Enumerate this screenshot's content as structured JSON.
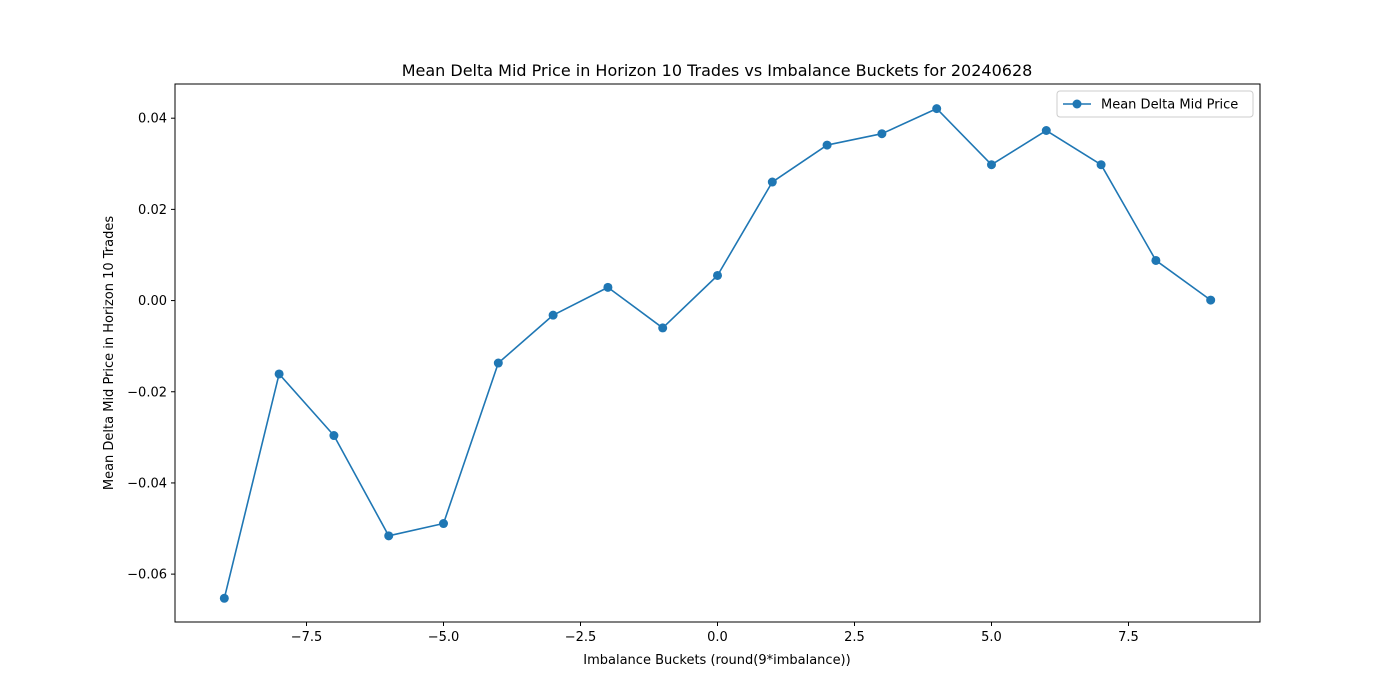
{
  "chart_data": {
    "type": "line",
    "title": "Mean Delta Mid Price in Horizon 10 Trades vs Imbalance Buckets for 20240628",
    "xlabel": "Imbalance Buckets (round(9*imbalance))",
    "ylabel": "Mean Delta Mid Price in Horizon 10 Trades",
    "xlim": [
      -9.9,
      9.9
    ],
    "ylim": [
      -0.0705,
      0.0475
    ],
    "x_ticks": [
      -7.5,
      -5.0,
      -2.5,
      0.0,
      2.5,
      5.0,
      7.5
    ],
    "x_tick_labels": [
      "−7.5",
      "−5.0",
      "−2.5",
      "0.0",
      "2.5",
      "5.0",
      "7.5"
    ],
    "y_ticks": [
      -0.06,
      -0.04,
      -0.02,
      0.0,
      0.02,
      0.04
    ],
    "y_tick_labels": [
      "−0.06",
      "−0.04",
      "−0.02",
      "0.00",
      "0.02",
      "0.04"
    ],
    "grid": false,
    "legend_position": "top-right",
    "color": "#1f77b4",
    "series": [
      {
        "name": "Mean Delta Mid Price",
        "x": [
          -9,
          -8,
          -7,
          -6,
          -5,
          -4,
          -3,
          -2,
          -1,
          0,
          1,
          2,
          3,
          4,
          5,
          6,
          7,
          8,
          9
        ],
        "y": [
          -0.0653,
          -0.0161,
          -0.0296,
          -0.0516,
          -0.0489,
          -0.0137,
          -0.0032,
          0.0029,
          -0.006,
          0.0055,
          0.026,
          0.0341,
          0.0366,
          0.0421,
          0.0298,
          0.0373,
          0.0298,
          0.0088,
          0.0001
        ]
      }
    ]
  }
}
